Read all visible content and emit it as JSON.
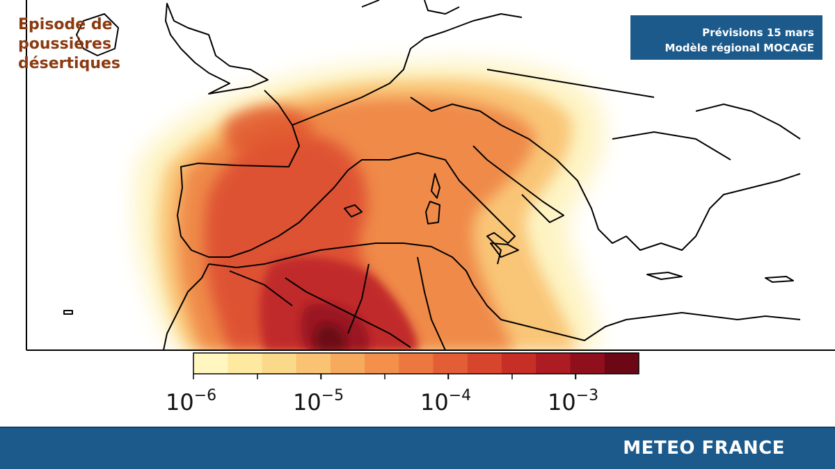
{
  "overlay": {
    "title_line1": "Episode de",
    "title_line2": "poussières",
    "title_line3": "désertiques"
  },
  "forecast": {
    "line1": "Prévisions 15 mars",
    "line2": "Modèle régional MOCAGE"
  },
  "colorbar": {
    "scale": "log",
    "colors": [
      "#fff6c0",
      "#fdeaa0",
      "#fbd98a",
      "#f9c373",
      "#f6aa5e",
      "#f2904c",
      "#ec773f",
      "#e35e35",
      "#d7452d",
      "#c62e26",
      "#ad1c22",
      "#8f0f1d",
      "#6c0716"
    ],
    "tick_labels": [
      {
        "base": "10",
        "exp": "−6"
      },
      {
        "base": "10",
        "exp": "−5"
      },
      {
        "base": "10",
        "exp": "−4"
      },
      {
        "base": "10",
        "exp": "−3"
      }
    ]
  },
  "footer": {
    "brand": "METEO FRANCE"
  }
}
